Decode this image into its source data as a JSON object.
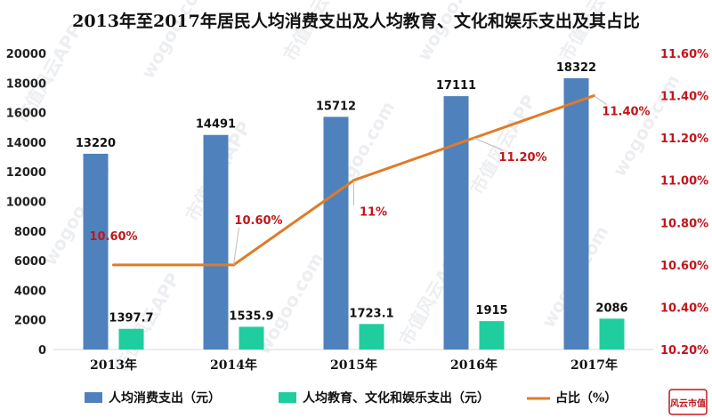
{
  "chart_data": {
    "type": "bar",
    "title": "2013年至2017年居民人均消费支出及人均教育、文化和娱乐支出及其占比",
    "categories": [
      "2013年",
      "2014年",
      "2015年",
      "2016年",
      "2017年"
    ],
    "series": [
      {
        "name": "人均消费支出（元）",
        "type": "bar",
        "axis": "left",
        "color": "#4f81bd",
        "values": [
          13220,
          14491,
          15712,
          17111,
          18322
        ],
        "labels": [
          "13220",
          "14491",
          "15712",
          "17111",
          "18322"
        ]
      },
      {
        "name": "人均教育、文化和娱乐支出（元）",
        "type": "bar",
        "axis": "left",
        "color": "#1fcd9e",
        "values": [
          1397.7,
          1535.9,
          1723.1,
          1915,
          2086
        ],
        "labels": [
          "1397.7",
          "1535.9",
          "1723.1",
          "1915",
          "2086"
        ]
      },
      {
        "name": "占比（%）",
        "type": "line",
        "axis": "right",
        "color": "#e07b28",
        "values": [
          10.6,
          10.6,
          11.0,
          11.2,
          11.4
        ],
        "labels": [
          "10.60%",
          "10.60%",
          "11%",
          "11.20%",
          "11.40%"
        ]
      }
    ],
    "y_left": {
      "min": 0,
      "max": 20000,
      "step": 2000,
      "ticks": [
        "0",
        "2000",
        "4000",
        "6000",
        "8000",
        "10000",
        "12000",
        "14000",
        "16000",
        "18000",
        "20000"
      ]
    },
    "y_right": {
      "min": 10.2,
      "max": 11.6,
      "step": 0.2,
      "ticks": [
        "10.20%",
        "10.40%",
        "10.60%",
        "10.80%",
        "11.00%",
        "11.20%",
        "11.40%",
        "11.60%"
      ]
    },
    "legend_position": "bottom",
    "grid": false
  },
  "watermark": {
    "text": "市值风云APP",
    "site": "wogoo.com"
  },
  "logo": {
    "text": "风云市值"
  }
}
